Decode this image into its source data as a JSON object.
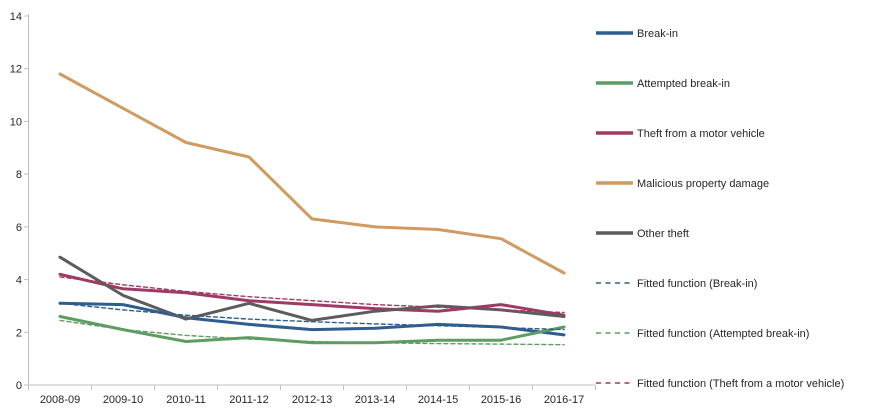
{
  "chart_data": {
    "type": "line",
    "title": "",
    "xlabel": "",
    "ylabel": "",
    "categories": [
      "2008-09",
      "2009-10",
      "2010-11",
      "2011-12",
      "2012-13",
      "2013-14",
      "2014-15",
      "2015-16",
      "2016-17"
    ],
    "ylim": [
      0,
      14
    ],
    "yticks": [
      0,
      2,
      4,
      6,
      8,
      10,
      12,
      14
    ],
    "grid": false,
    "legend_position": "right",
    "axis_color": "#bfbfbf",
    "tick_label_color": "#262626",
    "legend_text_color": "#262626",
    "series": [
      {
        "name": "Break-in",
        "style": "solid",
        "color": "#2e5d8e",
        "values": [
          3.1,
          3.05,
          2.55,
          2.3,
          2.1,
          2.15,
          2.3,
          2.2,
          1.9
        ]
      },
      {
        "name": "Attempted break-in",
        "style": "solid",
        "color": "#5f9c64",
        "values": [
          2.6,
          2.1,
          1.65,
          1.8,
          1.6,
          1.6,
          1.7,
          1.7,
          2.2
        ]
      },
      {
        "name": "Theft from a motor vehicle",
        "style": "solid",
        "color": "#9e3a64",
        "values": [
          4.2,
          3.65,
          3.5,
          3.2,
          3.05,
          2.9,
          2.8,
          3.05,
          2.65
        ]
      },
      {
        "name": "Malicious property damage",
        "style": "solid",
        "color": "#cf9b61",
        "values": [
          11.8,
          10.5,
          9.2,
          8.65,
          6.3,
          6.0,
          5.9,
          5.55,
          4.25
        ]
      },
      {
        "name": "Other theft",
        "style": "solid",
        "color": "#5c5c5c",
        "values": [
          4.85,
          3.4,
          2.5,
          3.1,
          2.45,
          2.8,
          3.0,
          2.85,
          2.6
        ]
      },
      {
        "name": "Fitted function (Break-in)",
        "style": "dashed",
        "color": "#2e5d8e",
        "values": [
          3.1,
          2.85,
          2.65,
          2.5,
          2.4,
          2.32,
          2.25,
          2.18,
          2.1
        ]
      },
      {
        "name": "Fitted function (Attempted break-in)",
        "style": "dashed",
        "color": "#5f9c64",
        "values": [
          2.45,
          2.1,
          1.88,
          1.74,
          1.65,
          1.6,
          1.57,
          1.55,
          1.53
        ]
      },
      {
        "name": "Fitted function (Theft from a motor vehicle)",
        "style": "dashed",
        "color": "#9e3a64",
        "values": [
          4.1,
          3.8,
          3.55,
          3.35,
          3.2,
          3.05,
          2.95,
          2.85,
          2.75
        ]
      }
    ]
  }
}
